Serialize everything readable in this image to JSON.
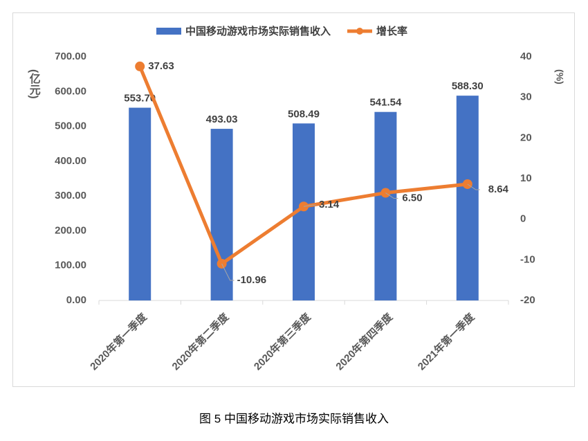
{
  "chart_data": {
    "type": "bar-line",
    "caption": "图 5 中国移动游戏市场实际销售收入",
    "y_label": "(亿元)",
    "y2_label": "(%)",
    "categories": [
      "2020年第一季度",
      "2020年第二季度",
      "2020年第三季度",
      "2020年第四季度",
      "2021年第一季度"
    ],
    "series": [
      {
        "name": "中国移动游戏市场实际销售收入",
        "type": "bar",
        "color": "#4472c4",
        "values": [
          553.7,
          493.03,
          508.49,
          541.54,
          588.3
        ],
        "value_labels": [
          "553.70",
          "493.03",
          "508.49",
          "541.54",
          "588.30"
        ]
      },
      {
        "name": "增长率",
        "type": "line",
        "axis": "y2",
        "color": "#ed7d31",
        "values": [
          37.63,
          -10.96,
          3.14,
          6.5,
          8.64
        ],
        "value_labels": [
          "37.63",
          "-10.96",
          "3.14",
          "6.50",
          "8.64"
        ]
      }
    ],
    "ylim": [
      0,
      700
    ],
    "yticks": [
      {
        "value": 0,
        "label": "0.00"
      },
      {
        "value": 100,
        "label": "100.00"
      },
      {
        "value": 200,
        "label": "200.00"
      },
      {
        "value": 300,
        "label": "300.00"
      },
      {
        "value": 400,
        "label": "400.00"
      },
      {
        "value": 500,
        "label": "500.00"
      },
      {
        "value": 600,
        "label": "600.00"
      },
      {
        "value": 700,
        "label": "700.00"
      }
    ],
    "y2lim": [
      -20,
      40
    ],
    "y2ticks": [
      -20,
      -10,
      0,
      10,
      20,
      30,
      40
    ],
    "grid": false,
    "legend": "top"
  }
}
